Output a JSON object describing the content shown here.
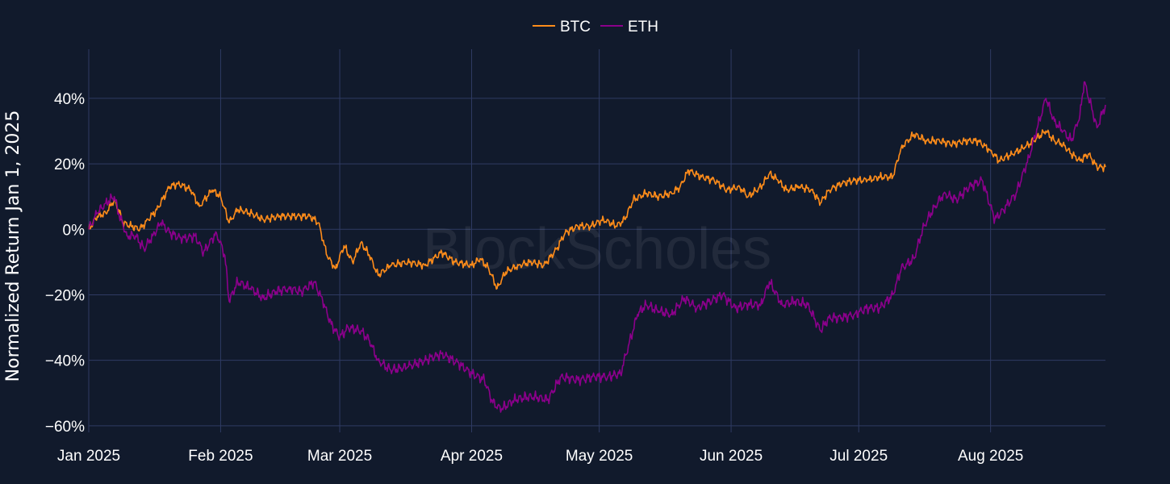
{
  "colors": {
    "background": "#111a2c",
    "grid": "#2f3b63",
    "text": "#ffffff"
  },
  "watermark": "BlockScholes",
  "chart_data": {
    "type": "line",
    "xlabel": "",
    "ylabel": "Normalized Return Jan 1, 2025",
    "ylim": [
      -0.62,
      0.55
    ],
    "xlim": [
      "2025-01-01",
      "2025-08-28"
    ],
    "yticks": [
      {
        "value": -0.6,
        "label": "−60%"
      },
      {
        "value": -0.4,
        "label": "−40%"
      },
      {
        "value": -0.2,
        "label": "−20%"
      },
      {
        "value": 0.0,
        "label": "0%"
      },
      {
        "value": 0.2,
        "label": "20%"
      },
      {
        "value": 0.4,
        "label": "40%"
      }
    ],
    "xticks": [
      {
        "date": "2025-01-01",
        "label": "Jan 2025"
      },
      {
        "date": "2025-02-01",
        "label": "Feb 2025"
      },
      {
        "date": "2025-03-01",
        "label": "Mar 2025"
      },
      {
        "date": "2025-04-01",
        "label": "Apr 2025"
      },
      {
        "date": "2025-05-01",
        "label": "May 2025"
      },
      {
        "date": "2025-06-01",
        "label": "Jun 2025"
      },
      {
        "date": "2025-07-01",
        "label": "Jul 2025"
      },
      {
        "date": "2025-08-01",
        "label": "Aug 2025"
      }
    ],
    "grid": true,
    "legend_position": "top-center",
    "series": [
      {
        "name": "BTC",
        "color": "#ff8c1a",
        "points": [
          [
            "2025-01-01",
            0.0
          ],
          [
            "2025-01-03",
            0.04
          ],
          [
            "2025-01-05",
            0.05
          ],
          [
            "2025-01-07",
            0.09
          ],
          [
            "2025-01-08",
            0.06
          ],
          [
            "2025-01-09",
            0.02
          ],
          [
            "2025-01-11",
            0.01
          ],
          [
            "2025-01-13",
            0.0
          ],
          [
            "2025-01-15",
            0.03
          ],
          [
            "2025-01-17",
            0.06
          ],
          [
            "2025-01-20",
            0.13
          ],
          [
            "2025-01-22",
            0.14
          ],
          [
            "2025-01-25",
            0.12
          ],
          [
            "2025-01-27",
            0.07
          ],
          [
            "2025-01-30",
            0.12
          ],
          [
            "2025-02-01",
            0.1
          ],
          [
            "2025-02-03",
            0.02
          ],
          [
            "2025-02-05",
            0.06
          ],
          [
            "2025-02-08",
            0.05
          ],
          [
            "2025-02-11",
            0.03
          ],
          [
            "2025-02-15",
            0.04
          ],
          [
            "2025-02-19",
            0.04
          ],
          [
            "2025-02-22",
            0.04
          ],
          [
            "2025-02-24",
            0.02
          ],
          [
            "2025-02-26",
            -0.08
          ],
          [
            "2025-02-28",
            -0.12
          ],
          [
            "2025-03-02",
            -0.05
          ],
          [
            "2025-03-04",
            -0.1
          ],
          [
            "2025-03-06",
            -0.04
          ],
          [
            "2025-03-08",
            -0.08
          ],
          [
            "2025-03-10",
            -0.14
          ],
          [
            "2025-03-13",
            -0.11
          ],
          [
            "2025-03-17",
            -0.1
          ],
          [
            "2025-03-21",
            -0.11
          ],
          [
            "2025-03-25",
            -0.07
          ],
          [
            "2025-03-28",
            -0.1
          ],
          [
            "2025-04-01",
            -0.11
          ],
          [
            "2025-04-03",
            -0.09
          ],
          [
            "2025-04-05",
            -0.12
          ],
          [
            "2025-04-07",
            -0.18
          ],
          [
            "2025-04-09",
            -0.13
          ],
          [
            "2025-04-12",
            -0.11
          ],
          [
            "2025-04-15",
            -0.1
          ],
          [
            "2025-04-18",
            -0.11
          ],
          [
            "2025-04-21",
            -0.06
          ],
          [
            "2025-04-23",
            -0.01
          ],
          [
            "2025-04-26",
            0.01
          ],
          [
            "2025-04-29",
            0.01
          ],
          [
            "2025-05-02",
            0.03
          ],
          [
            "2025-05-05",
            0.01
          ],
          [
            "2025-05-07",
            0.03
          ],
          [
            "2025-05-09",
            0.09
          ],
          [
            "2025-05-12",
            0.11
          ],
          [
            "2025-05-15",
            0.1
          ],
          [
            "2025-05-18",
            0.11
          ],
          [
            "2025-05-20",
            0.13
          ],
          [
            "2025-05-22",
            0.18
          ],
          [
            "2025-05-25",
            0.16
          ],
          [
            "2025-05-28",
            0.15
          ],
          [
            "2025-05-31",
            0.12
          ],
          [
            "2025-06-03",
            0.13
          ],
          [
            "2025-06-05",
            0.1
          ],
          [
            "2025-06-08",
            0.13
          ],
          [
            "2025-06-10",
            0.17
          ],
          [
            "2025-06-12",
            0.15
          ],
          [
            "2025-06-14",
            0.12
          ],
          [
            "2025-06-17",
            0.13
          ],
          [
            "2025-06-20",
            0.12
          ],
          [
            "2025-06-22",
            0.08
          ],
          [
            "2025-06-24",
            0.12
          ],
          [
            "2025-06-27",
            0.14
          ],
          [
            "2025-06-30",
            0.15
          ],
          [
            "2025-07-03",
            0.15
          ],
          [
            "2025-07-06",
            0.16
          ],
          [
            "2025-07-09",
            0.16
          ],
          [
            "2025-07-11",
            0.25
          ],
          [
            "2025-07-14",
            0.29
          ],
          [
            "2025-07-17",
            0.27
          ],
          [
            "2025-07-20",
            0.27
          ],
          [
            "2025-07-23",
            0.26
          ],
          [
            "2025-07-26",
            0.27
          ],
          [
            "2025-07-29",
            0.27
          ],
          [
            "2025-08-01",
            0.24
          ],
          [
            "2025-08-03",
            0.21
          ],
          [
            "2025-08-06",
            0.23
          ],
          [
            "2025-08-09",
            0.25
          ],
          [
            "2025-08-11",
            0.27
          ],
          [
            "2025-08-14",
            0.3
          ],
          [
            "2025-08-16",
            0.27
          ],
          [
            "2025-08-18",
            0.26
          ],
          [
            "2025-08-20",
            0.23
          ],
          [
            "2025-08-22",
            0.21
          ],
          [
            "2025-08-24",
            0.23
          ],
          [
            "2025-08-26",
            0.19
          ],
          [
            "2025-08-28",
            0.19
          ]
        ]
      },
      {
        "name": "ETH",
        "color": "#8b008b",
        "points": [
          [
            "2025-01-01",
            0.0
          ],
          [
            "2025-01-03",
            0.05
          ],
          [
            "2025-01-05",
            0.08
          ],
          [
            "2025-01-07",
            0.1
          ],
          [
            "2025-01-08",
            0.05
          ],
          [
            "2025-01-10",
            -0.02
          ],
          [
            "2025-01-12",
            -0.02
          ],
          [
            "2025-01-14",
            -0.06
          ],
          [
            "2025-01-16",
            -0.02
          ],
          [
            "2025-01-18",
            0.02
          ],
          [
            "2025-01-20",
            -0.01
          ],
          [
            "2025-01-23",
            -0.03
          ],
          [
            "2025-01-26",
            -0.02
          ],
          [
            "2025-01-28",
            -0.07
          ],
          [
            "2025-01-31",
            -0.01
          ],
          [
            "2025-02-02",
            -0.08
          ],
          [
            "2025-02-03",
            -0.22
          ],
          [
            "2025-02-05",
            -0.16
          ],
          [
            "2025-02-08",
            -0.18
          ],
          [
            "2025-02-11",
            -0.21
          ],
          [
            "2025-02-14",
            -0.19
          ],
          [
            "2025-02-17",
            -0.18
          ],
          [
            "2025-02-20",
            -0.19
          ],
          [
            "2025-02-23",
            -0.16
          ],
          [
            "2025-02-25",
            -0.22
          ],
          [
            "2025-02-27",
            -0.29
          ],
          [
            "2025-03-01",
            -0.33
          ],
          [
            "2025-03-03",
            -0.3
          ],
          [
            "2025-03-06",
            -0.31
          ],
          [
            "2025-03-08",
            -0.34
          ],
          [
            "2025-03-10",
            -0.4
          ],
          [
            "2025-03-13",
            -0.43
          ],
          [
            "2025-03-17",
            -0.42
          ],
          [
            "2025-03-21",
            -0.4
          ],
          [
            "2025-03-25",
            -0.38
          ],
          [
            "2025-03-29",
            -0.41
          ],
          [
            "2025-04-01",
            -0.44
          ],
          [
            "2025-04-04",
            -0.46
          ],
          [
            "2025-04-06",
            -0.53
          ],
          [
            "2025-04-08",
            -0.55
          ],
          [
            "2025-04-11",
            -0.52
          ],
          [
            "2025-04-15",
            -0.51
          ],
          [
            "2025-04-19",
            -0.52
          ],
          [
            "2025-04-22",
            -0.45
          ],
          [
            "2025-04-26",
            -0.46
          ],
          [
            "2025-04-30",
            -0.45
          ],
          [
            "2025-05-03",
            -0.45
          ],
          [
            "2025-05-06",
            -0.44
          ],
          [
            "2025-05-08",
            -0.35
          ],
          [
            "2025-05-10",
            -0.26
          ],
          [
            "2025-05-12",
            -0.23
          ],
          [
            "2025-05-15",
            -0.25
          ],
          [
            "2025-05-18",
            -0.26
          ],
          [
            "2025-05-21",
            -0.21
          ],
          [
            "2025-05-24",
            -0.24
          ],
          [
            "2025-05-27",
            -0.22
          ],
          [
            "2025-05-30",
            -0.2
          ],
          [
            "2025-06-02",
            -0.24
          ],
          [
            "2025-06-05",
            -0.23
          ],
          [
            "2025-06-08",
            -0.23
          ],
          [
            "2025-06-10",
            -0.16
          ],
          [
            "2025-06-13",
            -0.23
          ],
          [
            "2025-06-16",
            -0.22
          ],
          [
            "2025-06-19",
            -0.23
          ],
          [
            "2025-06-22",
            -0.31
          ],
          [
            "2025-06-24",
            -0.27
          ],
          [
            "2025-06-27",
            -0.27
          ],
          [
            "2025-06-30",
            -0.26
          ],
          [
            "2025-07-03",
            -0.24
          ],
          [
            "2025-07-06",
            -0.24
          ],
          [
            "2025-07-09",
            -0.2
          ],
          [
            "2025-07-11",
            -0.12
          ],
          [
            "2025-07-14",
            -0.09
          ],
          [
            "2025-07-16",
            0.0
          ],
          [
            "2025-07-18",
            0.05
          ],
          [
            "2025-07-21",
            0.11
          ],
          [
            "2025-07-24",
            0.09
          ],
          [
            "2025-07-27",
            0.13
          ],
          [
            "2025-07-30",
            0.15
          ],
          [
            "2025-08-02",
            0.03
          ],
          [
            "2025-08-04",
            0.06
          ],
          [
            "2025-08-07",
            0.11
          ],
          [
            "2025-08-10",
            0.22
          ],
          [
            "2025-08-12",
            0.31
          ],
          [
            "2025-08-14",
            0.4
          ],
          [
            "2025-08-16",
            0.33
          ],
          [
            "2025-08-18",
            0.3
          ],
          [
            "2025-08-20",
            0.27
          ],
          [
            "2025-08-22",
            0.35
          ],
          [
            "2025-08-23",
            0.45
          ],
          [
            "2025-08-25",
            0.36
          ],
          [
            "2025-08-26",
            0.31
          ],
          [
            "2025-08-28",
            0.38
          ]
        ]
      }
    ]
  }
}
